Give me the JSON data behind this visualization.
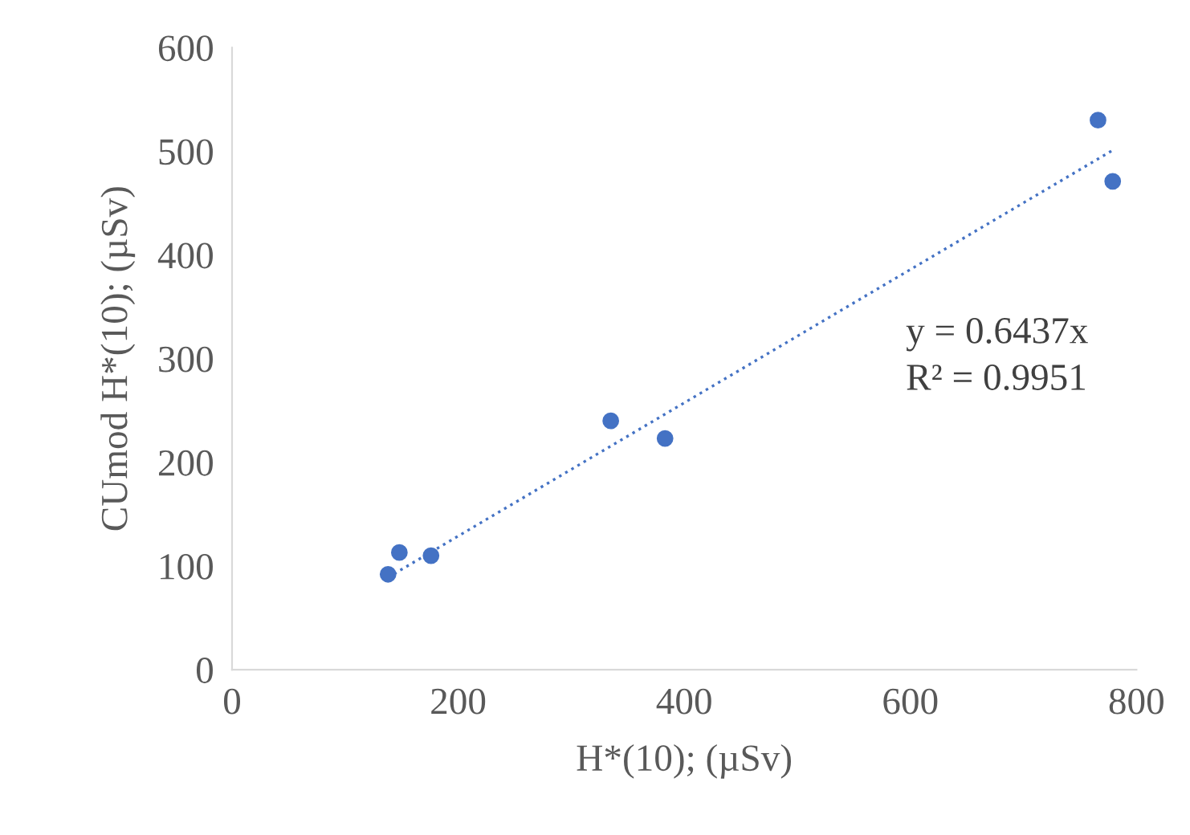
{
  "chart_data": {
    "type": "scatter",
    "xlabel": "H*(10); (µSv)",
    "ylabel": "CUmod H*(10); (µSv)",
    "xlim": [
      0,
      800
    ],
    "xticks": [
      0,
      200,
      400,
      600,
      800
    ],
    "ylim": [
      0,
      600
    ],
    "yticks": [
      0,
      100,
      200,
      300,
      400,
      500,
      600
    ],
    "grid": false,
    "legend": false,
    "marker": "circle",
    "series": [
      {
        "color": "#4472c4",
        "x": [
          138,
          148,
          176,
          335,
          383,
          766,
          779
        ],
        "values": [
          92,
          113,
          110,
          240,
          223,
          530,
          471
        ]
      },
      {
        "type": "line",
        "line_style": "dotted",
        "marker": "none",
        "color": "#4472c4",
        "x": [
          138,
          779
        ],
        "values": [
          89,
          501
        ]
      }
    ],
    "annotations": [
      "y = 0.6437x",
      "R² = 0.9951"
    ]
  }
}
